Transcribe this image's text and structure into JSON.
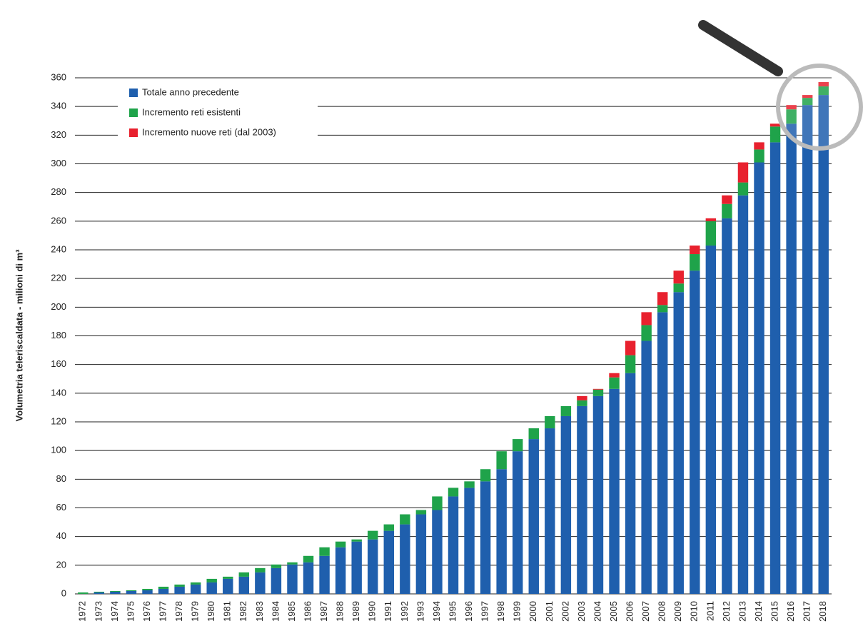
{
  "chart_data": {
    "type": "stacked_bar",
    "y_label": "Volumetria teleriscaldata  -  milioni di m³",
    "categories": [
      "1972",
      "1973",
      "1974",
      "1975",
      "1976",
      "1977",
      "1978",
      "1979",
      "1980",
      "1981",
      "1982",
      "1983",
      "1984",
      "1985",
      "1986",
      "1987",
      "1988",
      "1989",
      "1990",
      "1991",
      "1992",
      "1993",
      "1994",
      "1995",
      "1996",
      "1997",
      "1998",
      "1999",
      "2000",
      "2001",
      "2002",
      "2003",
      "2004",
      "2005",
      "2006",
      "2007",
      "2008",
      "2009",
      "2010",
      "2011",
      "2012",
      "2013",
      "2014",
      "2015",
      "2016",
      "2017",
      "2018"
    ],
    "series": [
      {
        "name": "Totale anno precedente",
        "color": "#1f5fad",
        "values": [
          0,
          1,
          1.5,
          2,
          2.5,
          3.5,
          5,
          6.5,
          8,
          10.5,
          12,
          15,
          18,
          20.5,
          22,
          26.5,
          32.5,
          36.5,
          38,
          44,
          48.5,
          55.5,
          58.5,
          68,
          74,
          78.5,
          87,
          99.5,
          108,
          115.5,
          124,
          131,
          138,
          143,
          154,
          176.5,
          196.5,
          210.5,
          225.5,
          243,
          262,
          278,
          301,
          315,
          328,
          341,
          348
        ]
      },
      {
        "name": "Incremento reti esistenti",
        "color": "#1fa34a",
        "values": [
          1,
          0.5,
          0.5,
          0.5,
          1,
          1.5,
          1.5,
          1.5,
          2.5,
          1.5,
          3,
          3,
          2.5,
          1.5,
          4.5,
          6,
          4,
          1.5,
          6,
          4.5,
          7,
          3,
          9.5,
          6,
          4.5,
          8.5,
          12.5,
          8.5,
          7.5,
          8.5,
          7,
          4,
          4.5,
          8,
          12.5,
          11,
          5,
          6,
          11.5,
          17,
          10,
          9,
          9,
          11,
          10,
          5,
          6
        ]
      },
      {
        "name": "Incremento nuove reti (dal 2003)",
        "color": "#e8212e",
        "values": [
          0,
          0,
          0,
          0,
          0,
          0,
          0,
          0,
          0,
          0,
          0,
          0,
          0,
          0,
          0,
          0,
          0,
          0,
          0,
          0,
          0,
          0,
          0,
          0,
          0,
          0,
          0,
          0,
          0,
          0,
          0,
          3,
          0.5,
          3,
          10,
          9,
          9,
          9,
          6,
          2,
          6,
          14,
          5,
          2,
          3,
          2,
          3
        ]
      }
    ],
    "ylim": [
      0,
      360
    ],
    "yticks": [
      0,
      20,
      40,
      60,
      80,
      100,
      120,
      140,
      160,
      180,
      200,
      220,
      240,
      260,
      280,
      300,
      320,
      340,
      360
    ],
    "grid": true
  }
}
